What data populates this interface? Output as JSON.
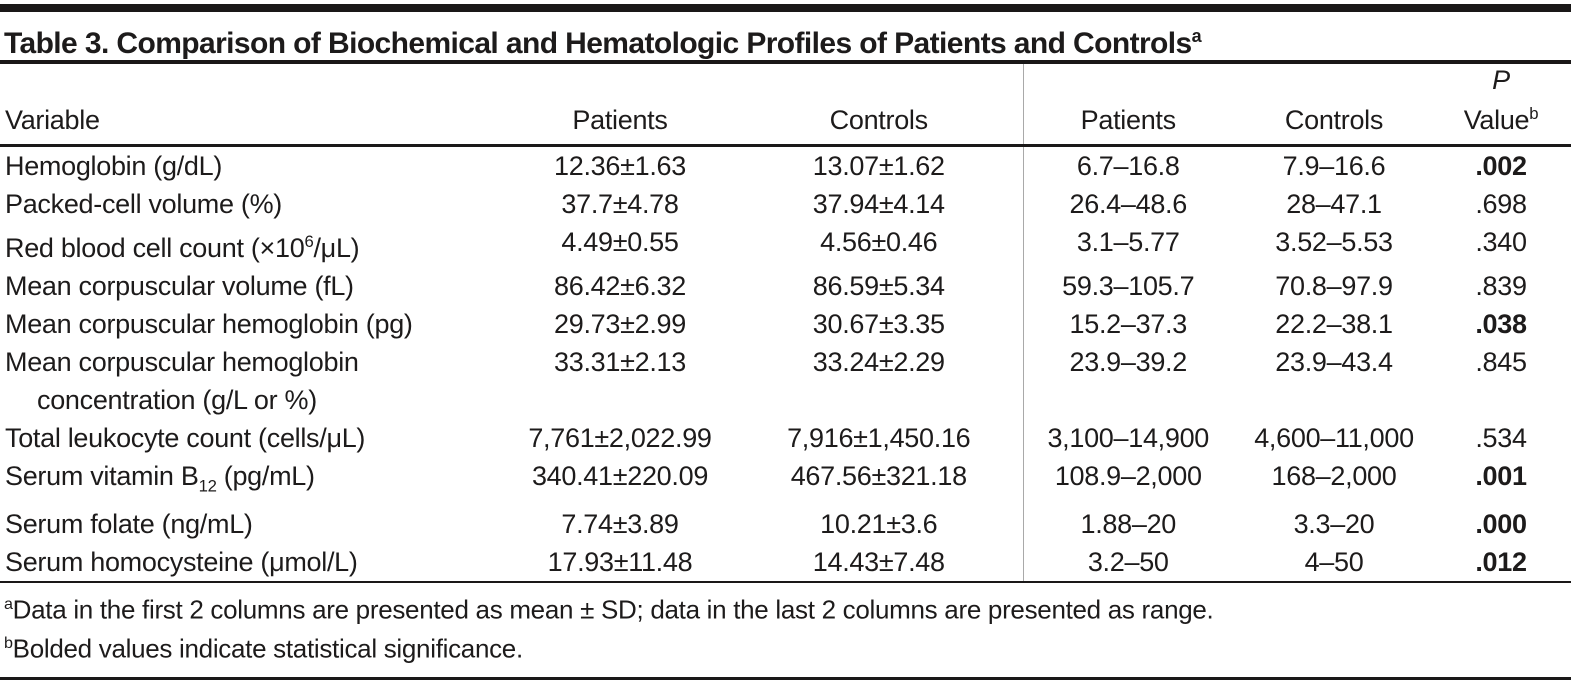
{
  "colors": {
    "background": "#ffffff",
    "text": "#1d1b1b",
    "rule": "#1a1818",
    "column_divider": "#a9a9a9"
  },
  "table": {
    "title_segments": [
      "Table 3. Comparison of Biochemical and Hematologic Profiles of Patients and Controls",
      {
        "sup": "a"
      }
    ],
    "header": {
      "variable": "Variable",
      "patients_mean": "Patients",
      "controls_mean": "Controls",
      "patients_range": "Patients",
      "controls_range": "Controls",
      "p_value_segments": [
        {
          "t": "P",
          "i": true
        },
        {
          "br": true
        },
        {
          "t": "Value"
        },
        {
          "sup": "b"
        }
      ]
    },
    "rows": [
      {
        "label": "Hemoglobin (g/dL)",
        "patients_mean": "12.36±1.63",
        "controls_mean": "13.07±1.62",
        "patients_range": "6.7–16.8",
        "controls_range": "7.9–16.6",
        "p": ".002",
        "significant": true
      },
      {
        "label": "Packed-cell volume (%)",
        "patients_mean": "37.7±4.78",
        "controls_mean": "37.94±4.14",
        "patients_range": "26.4–48.6",
        "controls_range": "28–47.1",
        "p": ".698",
        "significant": false
      },
      {
        "label": [
          "Red blood cell count (×10",
          {
            "sup": "6"
          },
          "/μL)"
        ],
        "patients_mean": "4.49±0.55",
        "controls_mean": "4.56±0.46",
        "patients_range": "3.1–5.77",
        "controls_range": "3.52–5.53",
        "p": ".340",
        "significant": false
      },
      {
        "label": "Mean corpuscular volume (fL)",
        "patients_mean": "86.42±6.32",
        "controls_mean": "86.59±5.34",
        "patients_range": "59.3–105.7",
        "controls_range": "70.8–97.9",
        "p": ".839",
        "significant": false
      },
      {
        "label": "Mean corpuscular hemoglobin (pg)",
        "patients_mean": "29.73±2.99",
        "controls_mean": "30.67±3.35",
        "patients_range": "15.2–37.3",
        "controls_range": "22.2–38.1",
        "p": ".038",
        "significant": true
      },
      {
        "label": [
          "Mean corpuscular hemoglobin",
          {
            "br": true
          },
          {
            "t": "concentration (g/L or %)",
            "ind": true
          }
        ],
        "patients_mean": "33.31±2.13",
        "controls_mean": "33.24±2.29",
        "patients_range": "23.9–39.2",
        "controls_range": "23.9–43.4",
        "p": ".845",
        "significant": false
      },
      {
        "label": "Total leukocyte count (cells/μL)",
        "patients_mean": "7,761±2,022.99",
        "controls_mean": "7,916±1,450.16",
        "patients_range": "3,100–14,900",
        "controls_range": "4,600–11,000",
        "p": ".534",
        "significant": false
      },
      {
        "label": [
          "Serum vitamin B",
          {
            "sub": "12"
          },
          " (pg/mL)"
        ],
        "patients_mean": "340.41±220.09",
        "controls_mean": "467.56±321.18",
        "patients_range": "108.9–2,000",
        "controls_range": "168–2,000",
        "p": ".001",
        "significant": true
      },
      {
        "label": "Serum folate (ng/mL)",
        "patients_mean": "7.74±3.89",
        "controls_mean": "10.21±3.6",
        "patients_range": "1.88–20",
        "controls_range": "3.3–20",
        "p": ".000",
        "significant": true
      },
      {
        "label": "Serum homocysteine (μmol/L)",
        "patients_mean": "17.93±11.48",
        "controls_mean": "14.43±7.48",
        "patients_range": "3.2–50",
        "controls_range": "4–50",
        "p": ".012",
        "significant": true
      }
    ],
    "footnotes": {
      "a_segments": [
        {
          "sup": "a"
        },
        "Data in the first 2 columns are presented as mean ± SD; data in the last 2 columns are presented as range."
      ],
      "b_segments": [
        {
          "sup": "b"
        },
        "Bolded values indicate statistical significance."
      ]
    }
  }
}
